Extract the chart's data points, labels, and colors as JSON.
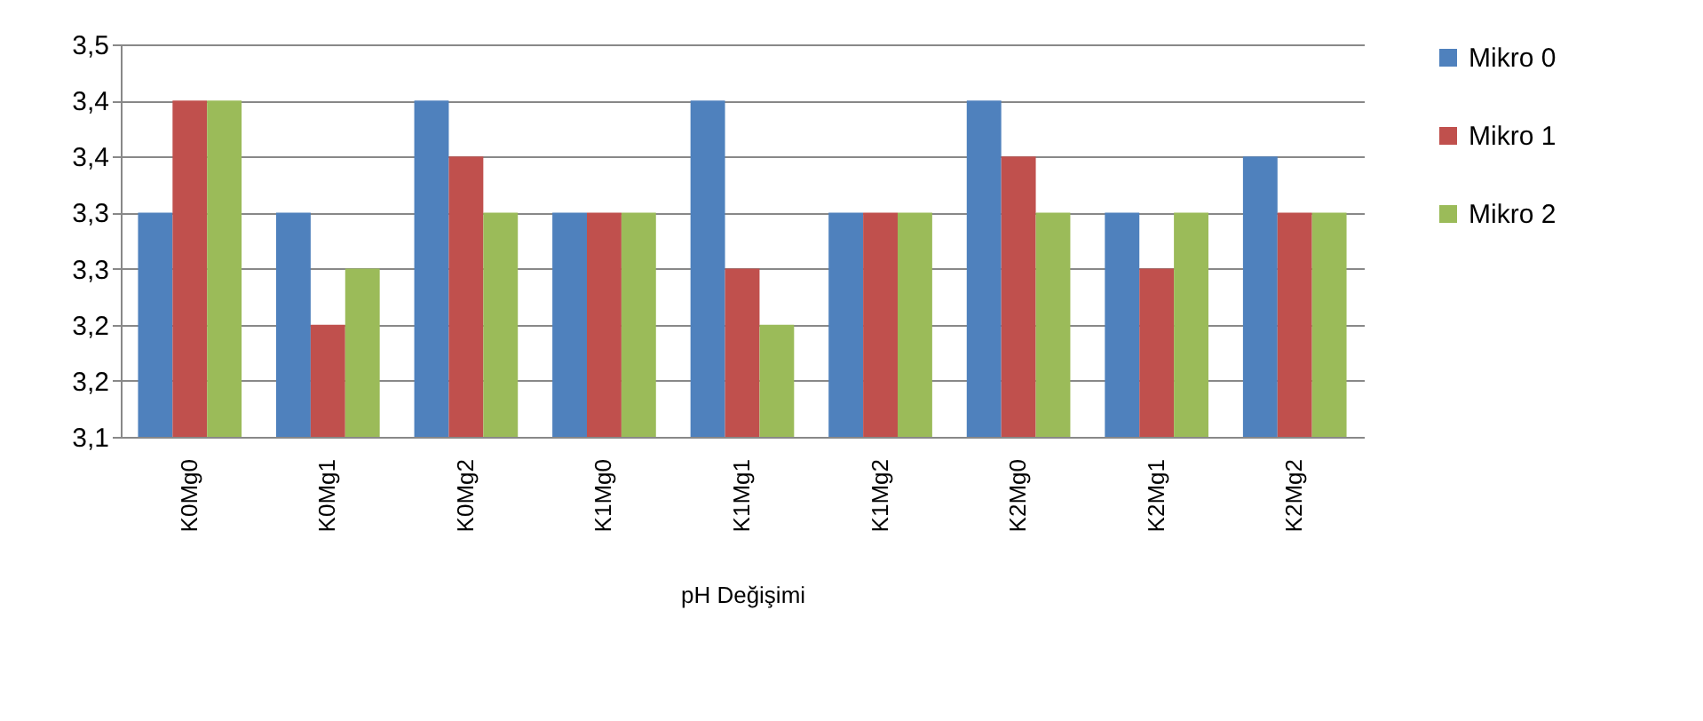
{
  "chart_data": {
    "type": "bar",
    "xlabel": "pH Değişimi",
    "categories": [
      "K0Mg0",
      "K0Mg1",
      "K0Mg2",
      "K1Mg0",
      "K1Mg1",
      "K1Mg2",
      "K2Mg0",
      "K2Mg1",
      "K2Mg2"
    ],
    "series": [
      {
        "name": "Mikro 0",
        "color": "#4f81bd",
        "values": [
          3.3,
          3.3,
          3.4,
          3.3,
          3.4,
          3.3,
          3.4,
          3.3,
          3.35
        ]
      },
      {
        "name": "Mikro 1",
        "color": "#c0504d",
        "values": [
          3.4,
          3.2,
          3.35,
          3.3,
          3.25,
          3.3,
          3.35,
          3.25,
          3.3
        ]
      },
      {
        "name": "Mikro 2",
        "color": "#9bbb59",
        "values": [
          3.4,
          3.25,
          3.3,
          3.3,
          3.2,
          3.3,
          3.3,
          3.3,
          3.3
        ]
      }
    ],
    "ylim": [
      3.1,
      3.45
    ],
    "yticks": [
      {
        "value": 3.1,
        "label": "3,1"
      },
      {
        "value": 3.15,
        "label": "3,2"
      },
      {
        "value": 3.2,
        "label": "3,2"
      },
      {
        "value": 3.25,
        "label": "3,3"
      },
      {
        "value": 3.3,
        "label": "3,3"
      },
      {
        "value": 3.35,
        "label": "3,4"
      },
      {
        "value": 3.4,
        "label": "3,4"
      },
      {
        "value": 3.45,
        "label": "3,5"
      }
    ],
    "grid": "y",
    "legend": "right"
  }
}
